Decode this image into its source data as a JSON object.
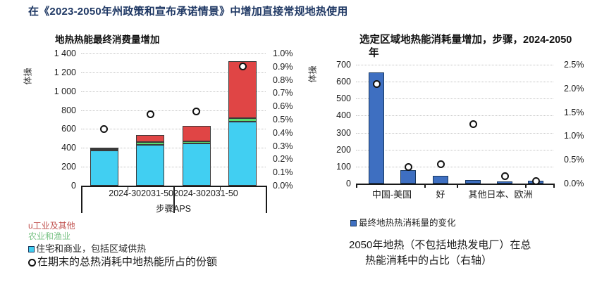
{
  "page_title": "在《2023-2050年州政策和宣布承诺情景》中增加直接常规地热使用",
  "colors": {
    "title_navy": "#1F3864",
    "cyan_bar": "#41CFF2",
    "green_bar": "#5BDB6F",
    "red_bar": "#E04545",
    "blue_bar": "#3E6FC1",
    "navy_border": "#17375E",
    "legend_red_text": "#C0504D",
    "legend_green_text": "#7CC488"
  },
  "left_legend": {
    "industry": "u工业及其他",
    "agriculture": "农业和渔业",
    "residential": "住宅和商业，包括区域供热",
    "share_dot": "在期末的总热消耗中地热能所占的份额"
  },
  "right_panel": {
    "legend": "最终地热热消耗量的变化",
    "note_line1": "2050年地热（不包括地热发电厂）在总",
    "note_line2": "热能消耗中的占比（右轴）"
  },
  "chart_data": [
    {
      "type": "bar",
      "stacked": true,
      "title": "地热热能最终消费量增加",
      "unit_label": "体操",
      "categories": [
        "2024-30",
        "2031-50",
        "2024-30",
        "2031-50"
      ],
      "group_labels": [
        "步骤",
        "APS"
      ],
      "series": [
        {
          "name": "住宅和商业，包括区域供热",
          "color": "#41CFF2",
          "values": [
            370,
            430,
            445,
            680
          ]
        },
        {
          "name": "农业和渔业",
          "color": "#5BDB6F",
          "values": [
            12,
            30,
            25,
            35
          ]
        },
        {
          "name": "工业及其他",
          "color": "#E04545",
          "values": [
            18,
            75,
            160,
            600
          ]
        }
      ],
      "point_series": {
        "name": "在期末的总热消耗中地热能所占的份额",
        "unit": "%",
        "values": [
          0.43,
          0.54,
          0.56,
          0.9
        ]
      },
      "left_axis": {
        "min": 0,
        "max": 1400,
        "tick_labels": [
          "1 400",
          "1 200",
          "1 000",
          "800",
          "600",
          "400",
          "200",
          "0"
        ]
      },
      "right_axis": {
        "min": 0,
        "max": 1.0,
        "tick_labels": [
          "1.0%",
          "0.9%",
          "0.8%",
          "0.7%",
          "0.6%",
          "0.5%",
          "0.4%",
          "0.3%",
          "0.2%",
          "0.1%",
          "0.0%"
        ]
      },
      "legend_position": "bottom-left",
      "grid": true
    },
    {
      "type": "bar",
      "stacked": false,
      "title_line1": "选定区域地热能消耗量增加，步骤，2024-2050",
      "title_line2": "年",
      "unit_label": "体操",
      "x_group_labels": [
        "中国-美国",
        "好",
        "其他日本、欧洲"
      ],
      "bar_color": "#3E6FC1",
      "values": [
        655,
        80,
        45,
        22,
        5,
        18
      ],
      "point_series": {
        "name": "2050年地热（不包括地热发电厂）在总热能消耗中的占比（右轴）",
        "unit": "%",
        "values": [
          2.1,
          0.35,
          0.4,
          1.25,
          0.15,
          0.05
        ]
      },
      "left_axis": {
        "min": 0,
        "max": 700,
        "tick_labels": [
          "700",
          "600",
          "500",
          "400",
          "300",
          "200",
          "100",
          "0"
        ]
      },
      "right_axis": {
        "min": 0,
        "max": 2.5,
        "tick_labels": [
          "2.5%",
          "2.0%",
          "1.5%",
          "1.0%",
          "0.5%",
          "0.0%"
        ]
      },
      "legend_position": "bottom-left",
      "grid": true
    }
  ]
}
